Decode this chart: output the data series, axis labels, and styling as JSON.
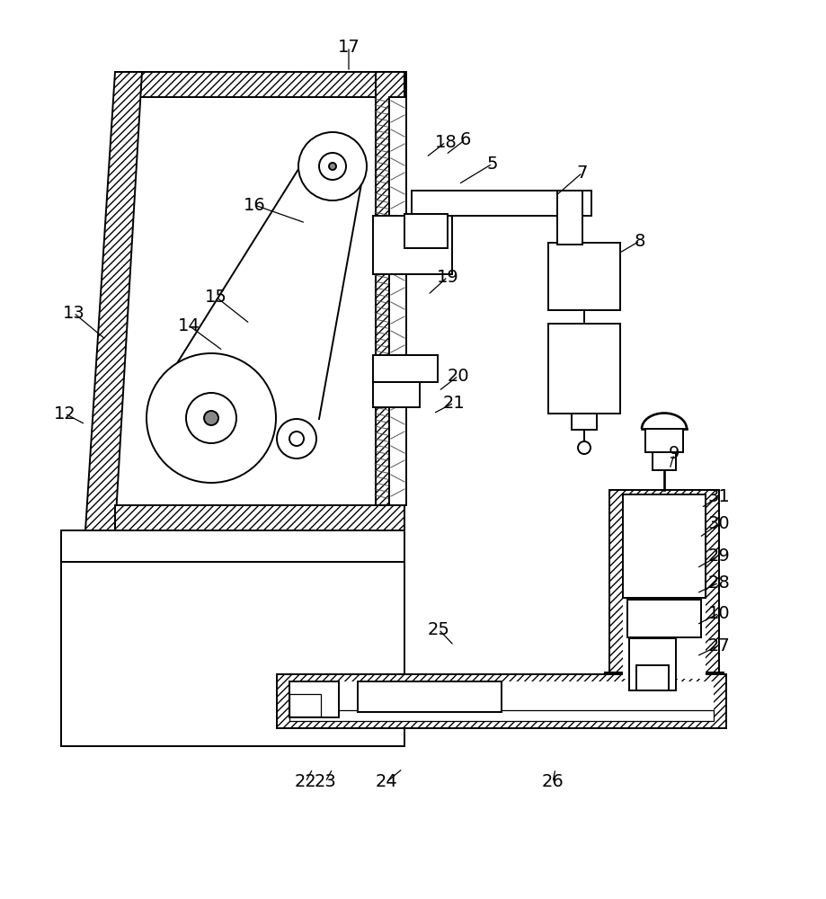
{
  "bg": "#ffffff",
  "lc": "#1a1a1a",
  "lw": 1.4,
  "figsize": [
    9.2,
    10.0
  ],
  "dpi": 100,
  "labels": [
    [
      "17",
      388,
      52
    ],
    [
      "16",
      283,
      228
    ],
    [
      "15",
      240,
      330
    ],
    [
      "14",
      210,
      362
    ],
    [
      "13",
      82,
      348
    ],
    [
      "12",
      72,
      460
    ],
    [
      "18",
      496,
      158
    ],
    [
      "6",
      518,
      155
    ],
    [
      "5",
      548,
      182
    ],
    [
      "7",
      648,
      192
    ],
    [
      "8",
      712,
      268
    ],
    [
      "19",
      498,
      308
    ],
    [
      "20",
      510,
      418
    ],
    [
      "21",
      505,
      448
    ],
    [
      "9",
      750,
      505
    ],
    [
      "31",
      800,
      552
    ],
    [
      "30",
      800,
      582
    ],
    [
      "29",
      800,
      618
    ],
    [
      "28",
      800,
      648
    ],
    [
      "10",
      800,
      682
    ],
    [
      "27",
      800,
      718
    ],
    [
      "25",
      488,
      700
    ],
    [
      "22",
      340,
      870
    ],
    [
      "23",
      362,
      870
    ],
    [
      "24",
      430,
      870
    ],
    [
      "26",
      615,
      870
    ]
  ],
  "leader_lines": [
    [
      "17",
      388,
      52,
      388,
      80
    ],
    [
      "16",
      283,
      228,
      340,
      248
    ],
    [
      "15",
      240,
      330,
      278,
      360
    ],
    [
      "14",
      210,
      362,
      248,
      390
    ],
    [
      "13",
      82,
      348,
      118,
      378
    ],
    [
      "12",
      72,
      460,
      95,
      472
    ],
    [
      "18",
      496,
      158,
      474,
      175
    ],
    [
      "6",
      518,
      155,
      496,
      172
    ],
    [
      "5",
      548,
      182,
      510,
      205
    ],
    [
      "7",
      648,
      192,
      618,
      218
    ],
    [
      "8",
      712,
      268,
      688,
      282
    ],
    [
      "19",
      498,
      308,
      476,
      328
    ],
    [
      "20",
      510,
      418,
      488,
      435
    ],
    [
      "21",
      505,
      448,
      482,
      460
    ],
    [
      "9",
      750,
      505,
      745,
      522
    ],
    [
      "31",
      800,
      552,
      780,
      565
    ],
    [
      "30",
      800,
      582,
      778,
      598
    ],
    [
      "29",
      800,
      618,
      775,
      632
    ],
    [
      "28",
      800,
      648,
      775,
      660
    ],
    [
      "10",
      800,
      682,
      775,
      695
    ],
    [
      "27",
      800,
      718,
      775,
      730
    ],
    [
      "25",
      488,
      700,
      505,
      718
    ],
    [
      "22",
      340,
      870,
      348,
      855
    ],
    [
      "23",
      362,
      870,
      370,
      855
    ],
    [
      "24",
      430,
      870,
      448,
      855
    ],
    [
      "26",
      615,
      870,
      618,
      855
    ]
  ]
}
